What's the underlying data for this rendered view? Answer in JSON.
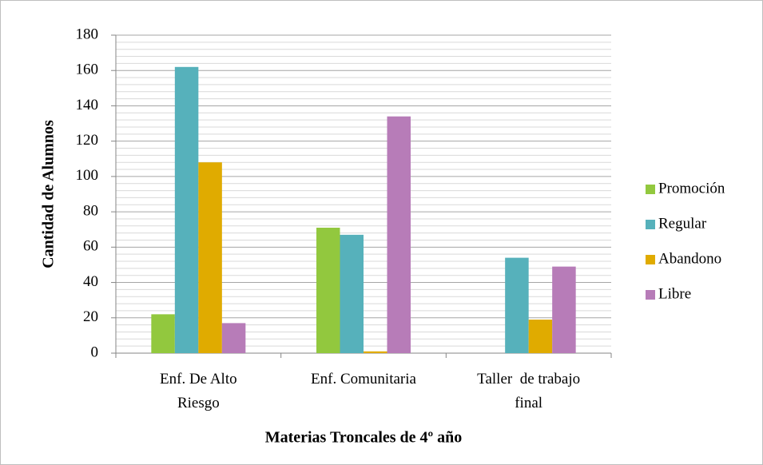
{
  "chart_data": {
    "type": "bar",
    "xlabel": "Materias Troncales de 4º año",
    "ylabel": "Cantidad de Alumnos",
    "categories": [
      "Enf. De Alto Riesgo",
      "Enf. Comunitaria",
      "Taller  de trabajo final"
    ],
    "series": [
      {
        "name": "Promoción",
        "color": "#92c83e",
        "values": [
          22,
          71,
          0
        ]
      },
      {
        "name": "Regular",
        "color": "#56b1bb",
        "values": [
          162,
          67,
          54
        ]
      },
      {
        "name": "Abandono",
        "color": "#e0ab00",
        "values": [
          108,
          1,
          19
        ]
      },
      {
        "name": "Libre",
        "color": "#b77cb8",
        "values": [
          17,
          134,
          49
        ]
      }
    ],
    "ylim": [
      0,
      180
    ],
    "yticks": [
      0,
      20,
      40,
      60,
      80,
      100,
      120,
      140,
      160,
      180
    ],
    "grid": true,
    "legend": "right"
  }
}
